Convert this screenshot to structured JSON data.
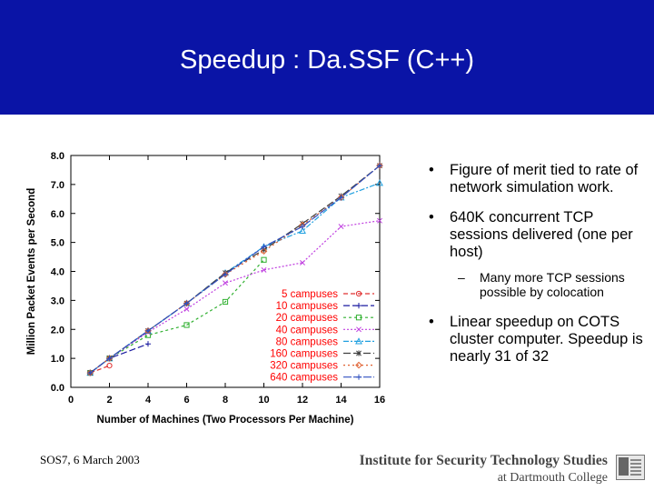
{
  "slide": {
    "title": "Speedup : Da.SSF (C++)",
    "bullets": [
      {
        "text": "Figure of merit tied to rate of network simulation work."
      },
      {
        "text": "640K concurrent TCP sessions delivered (one per host)"
      },
      {
        "text": "Linear speedup on COTS cluster computer. Speedup is nearly 31 of 32"
      }
    ],
    "sub_bullet": "Many more TCP sessions possible by colocation",
    "footer_date": "SOS7, 6 March 2003",
    "institute_line1": "Institute for Security Technology Studies",
    "institute_line2": "at Dartmouth College"
  },
  "colors": {
    "header": "#0a14a6",
    "legend_text": "#ff0000"
  },
  "chart_data": {
    "type": "line",
    "title": "",
    "xlabel": "Number of Machines (Two Processors Per Machine)",
    "ylabel": "Million Packet Events per Second",
    "xlim": [
      0,
      16
    ],
    "ylim": [
      0,
      8
    ],
    "x_ticks": [
      0,
      2,
      4,
      6,
      8,
      10,
      12,
      14,
      16
    ],
    "y_ticks": [
      "0.0",
      "1.0",
      "2.0",
      "3.0",
      "4.0",
      "5.0",
      "6.0",
      "7.0",
      "8.0"
    ],
    "legend_position": "bottom-right",
    "series": [
      {
        "name": "5 campuses",
        "color": "#e03030",
        "marker": "circle",
        "x": [
          1,
          2
        ],
        "y": [
          0.5,
          0.75
        ]
      },
      {
        "name": "10 campuses",
        "color": "#1a1aa0",
        "marker": "plus",
        "x": [
          1,
          2,
          4
        ],
        "y": [
          0.5,
          1.0,
          1.5
        ]
      },
      {
        "name": "20 campuses",
        "color": "#30b030",
        "marker": "square",
        "x": [
          1,
          2,
          4,
          6,
          8,
          10
        ],
        "y": [
          0.5,
          1.0,
          1.8,
          2.15,
          2.95,
          4.4
        ]
      },
      {
        "name": "40 campuses",
        "color": "#c040e0",
        "marker": "x",
        "x": [
          1,
          2,
          4,
          6,
          8,
          10,
          12,
          14,
          16
        ],
        "y": [
          0.5,
          1.0,
          1.9,
          2.7,
          3.6,
          4.05,
          4.3,
          5.55,
          5.75
        ]
      },
      {
        "name": "80 campuses",
        "color": "#20a0e0",
        "marker": "triangle",
        "x": [
          1,
          2,
          4,
          6,
          8,
          10,
          12,
          14,
          16
        ],
        "y": [
          0.5,
          1.0,
          1.95,
          2.9,
          3.95,
          4.85,
          5.4,
          6.55,
          7.05
        ]
      },
      {
        "name": "160 campuses",
        "color": "#404040",
        "marker": "star",
        "x": [
          1,
          2,
          4,
          6,
          8,
          10,
          12,
          14,
          16
        ],
        "y": [
          0.5,
          1.0,
          1.95,
          2.9,
          3.95,
          4.75,
          5.65,
          6.6,
          7.65
        ]
      },
      {
        "name": "320 campuses",
        "color": "#e06030",
        "marker": "diamond",
        "x": [
          1,
          2,
          4,
          6,
          8,
          10,
          12,
          14,
          16
        ],
        "y": [
          0.5,
          1.0,
          1.95,
          2.9,
          3.9,
          4.7,
          5.6,
          6.55,
          7.65
        ]
      },
      {
        "name": "640 campuses",
        "color": "#3050c0",
        "marker": "plus",
        "x": [
          1,
          2,
          4,
          6,
          8,
          10,
          12,
          14,
          16
        ],
        "y": [
          0.5,
          1.0,
          1.95,
          2.9,
          3.9,
          4.85,
          5.55,
          6.55,
          7.65
        ]
      }
    ]
  }
}
